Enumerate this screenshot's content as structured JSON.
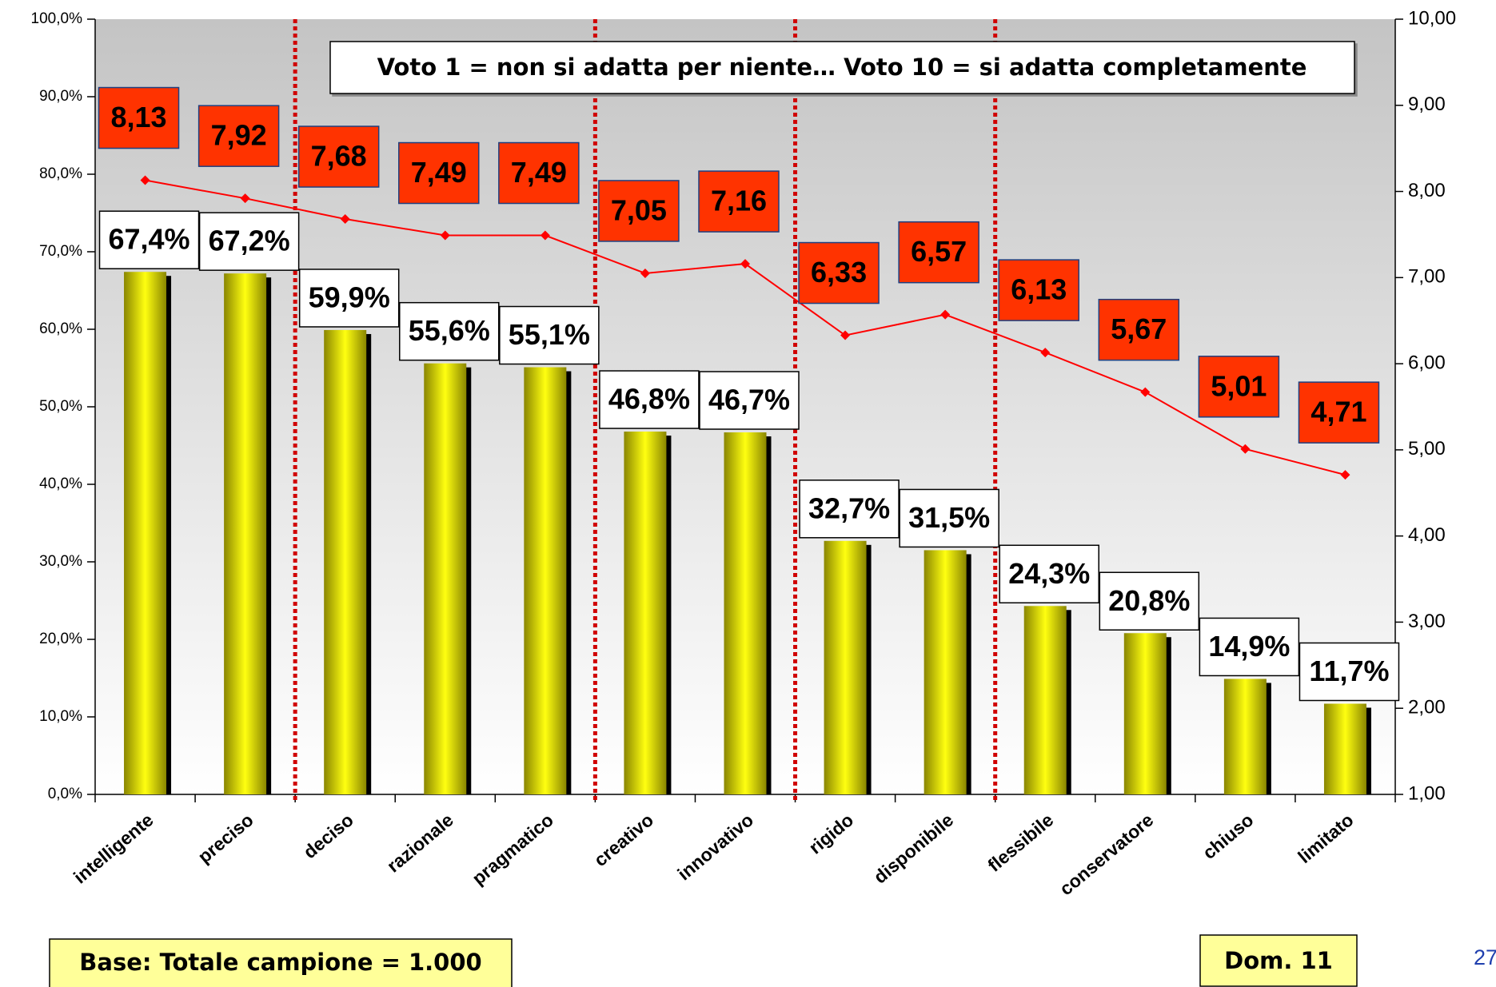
{
  "chart_data": {
    "type": "bar_line",
    "annotation": "Voto 1 = non si adatta per niente… Voto 10 = si adatta completamente",
    "footnote": "Base: Totale campione = 1.000",
    "question": "Dom. 11",
    "page_number": "27",
    "categories": [
      "intelligente",
      "preciso",
      "deciso",
      "razionale",
      "pragmatico",
      "creativo",
      "innovativo",
      "rigido",
      "disponibile",
      "flessibile",
      "conservatore",
      "chiuso",
      "limitato"
    ],
    "series": [
      {
        "color": "#b5b000",
        "values": [
          67.4,
          67.2,
          59.9,
          55.6,
          55.1,
          46.8,
          46.7,
          32.7,
          31.5,
          24.3,
          20.8,
          14.9,
          11.7
        ],
        "value_labels": [
          "67,4%",
          "67,2%",
          "59,9%",
          "55,6%",
          "55,1%",
          "46,8%",
          "46,7%",
          "32,7%",
          "31,5%",
          "24,3%",
          "20,8%",
          "14,9%",
          "11,7%"
        ]
      },
      {
        "color": "#ff0000",
        "axis": "y2",
        "values": [
          8.13,
          7.92,
          7.68,
          7.49,
          7.49,
          7.05,
          7.16,
          6.33,
          6.57,
          6.13,
          5.67,
          5.01,
          4.71
        ],
        "value_labels": [
          "8,13",
          "7,92",
          "7,68",
          "7,49",
          "7,49",
          "7,05",
          "7,16",
          "6,33",
          "6,57",
          "6,13",
          "5,67",
          "5,01",
          "4,71"
        ]
      }
    ],
    "ylim": [
      0,
      100
    ],
    "yticks": [
      {
        "value": 0,
        "label": "0,0%"
      },
      {
        "value": 10,
        "label": "10,0%"
      },
      {
        "value": 20,
        "label": "20,0%"
      },
      {
        "value": 30,
        "label": "30,0%"
      },
      {
        "value": 40,
        "label": "40,0%"
      },
      {
        "value": 50,
        "label": "50,0%"
      },
      {
        "value": 60,
        "label": "60,0%"
      },
      {
        "value": 70,
        "label": "70,0%"
      },
      {
        "value": 80,
        "label": "80,0%"
      },
      {
        "value": 90,
        "label": "90,0%"
      },
      {
        "value": 100,
        "label": "100,0%"
      }
    ],
    "y2lim": [
      1,
      10
    ],
    "y2ticks": [
      {
        "value": 1,
        "label": "1,00"
      },
      {
        "value": 2,
        "label": "2,00"
      },
      {
        "value": 3,
        "label": "3,00"
      },
      {
        "value": 4,
        "label": "4,00"
      },
      {
        "value": 5,
        "label": "5,00"
      },
      {
        "value": 6,
        "label": "6,00"
      },
      {
        "value": 7,
        "label": "7,00"
      },
      {
        "value": 8,
        "label": "8,00"
      },
      {
        "value": 9,
        "label": "9,00"
      },
      {
        "value": 10,
        "label": "10,00"
      }
    ],
    "group_separators_after": [
      1,
      4,
      6,
      8
    ]
  }
}
